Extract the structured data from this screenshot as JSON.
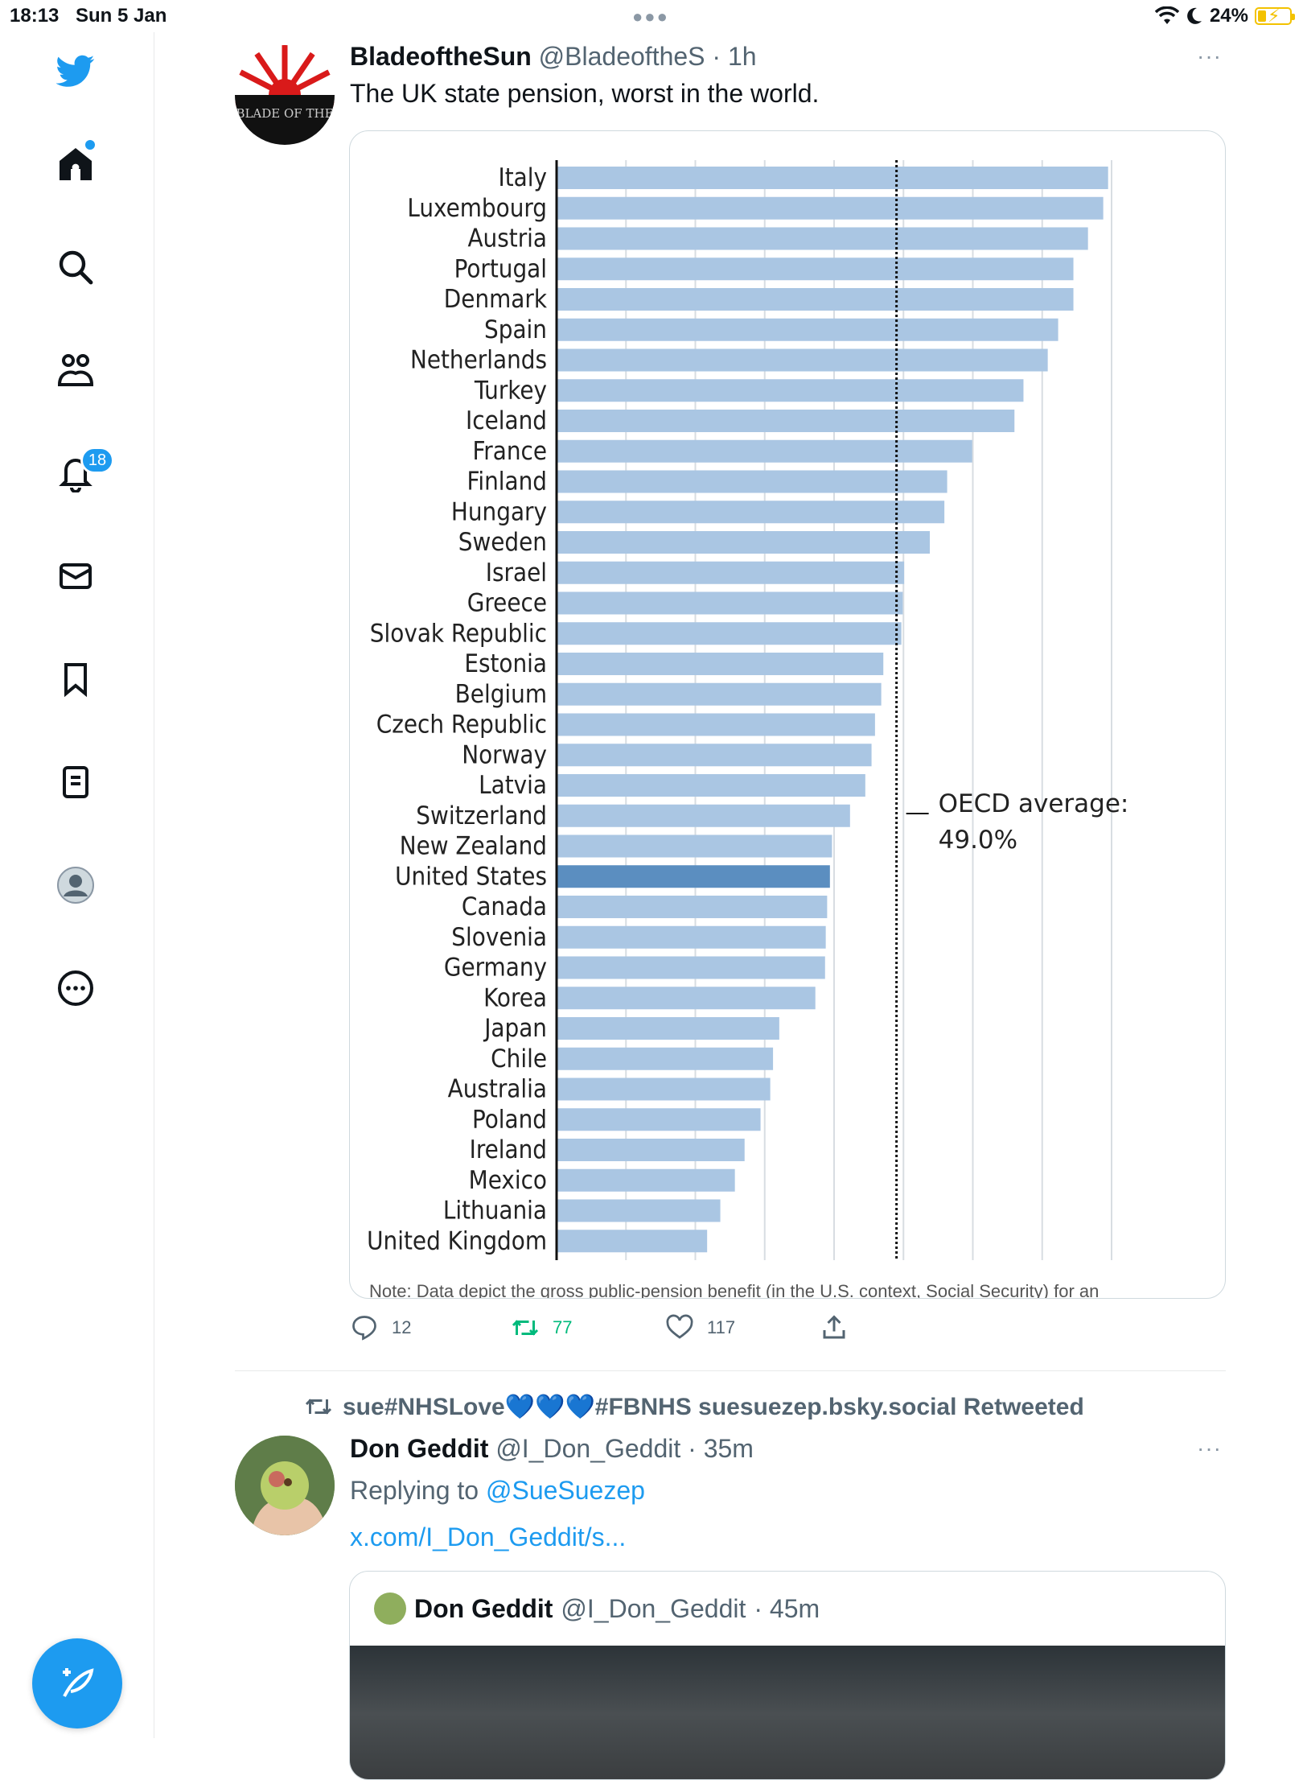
{
  "status": {
    "time": "18:13",
    "date": "Sun 5 Jan",
    "battery": "24%"
  },
  "nav": {
    "items": [
      "twitter-logo",
      "home",
      "search",
      "communities",
      "notifications",
      "messages",
      "bookmarks",
      "lists",
      "profile",
      "more"
    ],
    "notifications_badge": "18"
  },
  "tweet1": {
    "display_name": "BladeoftheSun",
    "handle": "@BladeoftheS",
    "time": "· 1h",
    "text": "The UK state pension, worst in the world.",
    "avatar_text": "BLADE OF THE",
    "replies": "12",
    "retweets": "77",
    "likes": "117"
  },
  "chart_data": {
    "type": "bar",
    "orientation": "horizontal",
    "categories": [
      "Italy",
      "Luxembourg",
      "Austria",
      "Portugal",
      "Denmark",
      "Spain",
      "Netherlands",
      "Turkey",
      "Iceland",
      "France",
      "Finland",
      "Hungary",
      "Sweden",
      "Israel",
      "Greece",
      "Slovak Republic",
      "Estonia",
      "Belgium",
      "Czech Republic",
      "Norway",
      "Latvia",
      "Switzerland",
      "New Zealand",
      "United States",
      "Canada",
      "Slovenia",
      "Germany",
      "Korea",
      "Japan",
      "Chile",
      "Australia",
      "Poland",
      "Ireland",
      "Mexico",
      "Lithuania",
      "United Kingdom"
    ],
    "values": [
      79.5,
      78.8,
      76.6,
      74.5,
      74.5,
      72.3,
      70.8,
      67.3,
      66.0,
      59.9,
      56.3,
      55.9,
      53.8,
      50.1,
      49.9,
      49.7,
      47.1,
      46.8,
      45.9,
      45.4,
      44.5,
      42.3,
      39.7,
      39.4,
      39.0,
      38.8,
      38.7,
      37.3,
      32.1,
      31.2,
      30.8,
      29.4,
      27.1,
      25.7,
      23.6,
      21.7
    ],
    "highlight": "United States",
    "reference_line": {
      "value": 49.0,
      "label": "OECD average:",
      "value_label": "49.0%"
    },
    "xlim": [
      0,
      80
    ],
    "note": "Note: Data depict the gross public-pension benefit (in the U.S. context, Social Security) for an",
    "colors": {
      "bar": "#aac6e3",
      "highlight": "#5b8ec0",
      "grid": "#d8dde2"
    }
  },
  "retweet_header": "sue#NHSLove💙💙💙#FBNHS suesuezep.bsky.social Retweeted",
  "tweet2": {
    "display_name": "Don Geddit",
    "handle": "@I_Don_Geddit",
    "time": "· 35m",
    "replying_label": "Replying to",
    "replying_handle": "@SueSuezep",
    "link": "x.com/I_Don_Geddit/s...",
    "quote": {
      "display_name": "Don Geddit",
      "handle": "@I_Don_Geddit",
      "time": "· 45m"
    }
  }
}
